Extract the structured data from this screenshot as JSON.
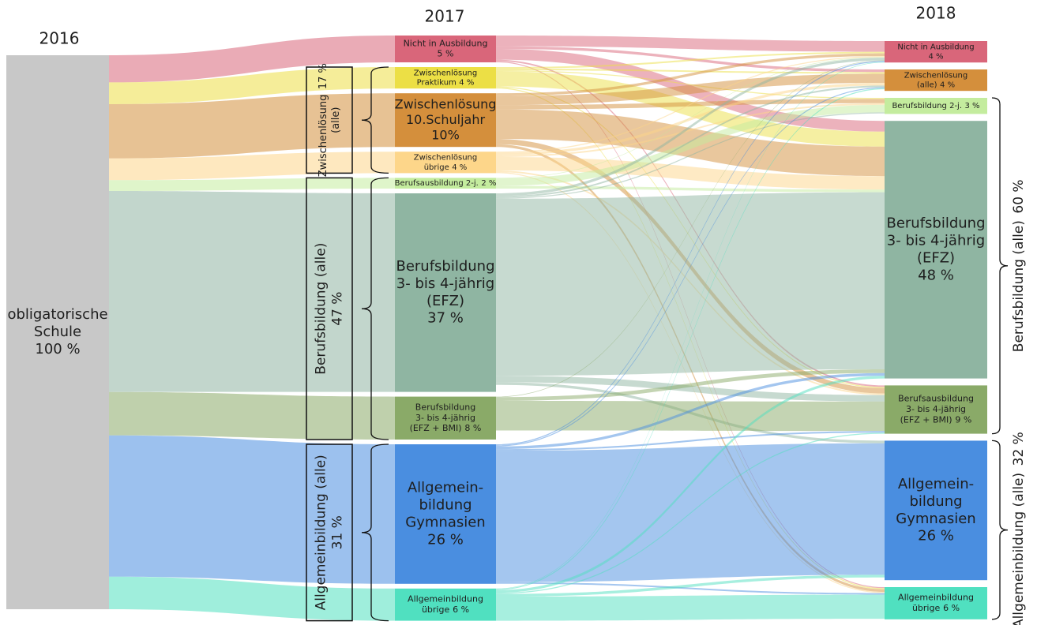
{
  "chart_data": {
    "type": "sankey",
    "columns": [
      {
        "label": "2016",
        "nodes": [
          {
            "lines": [
              "obligatorische",
              "Schule"
            ],
            "value": 100,
            "value_label": "100 %",
            "color": "#c8c8c8"
          }
        ]
      },
      {
        "label": "2017",
        "nodes": [
          {
            "lines": [
              "Nicht in Ausbildung"
            ],
            "value": 5,
            "value_label": "5 %",
            "color": "#d9667a"
          },
          {
            "lines": [
              "Zwischenlösung",
              "Praktikum"
            ],
            "value": 4,
            "value_label": "4 %",
            "color": "#ecdf45",
            "label_inline": true
          },
          {
            "lines": [
              "Zwischenlösung",
              "10.Schuljahr"
            ],
            "value": 10,
            "value_label": "10%",
            "color": "#d48f3c"
          },
          {
            "lines": [
              "Zwischenlösung",
              "übrige"
            ],
            "value": 4,
            "value_label": "4 %",
            "color": "#fdd68a",
            "label_inline": true
          },
          {
            "lines": [
              "Berufsausbildung 2-j."
            ],
            "value": 2,
            "value_label": "2 %",
            "color": "#c4ec9e",
            "label_inline": true
          },
          {
            "lines": [
              "Berufsbildung",
              "3- bis 4-jährig",
              "(EFZ)"
            ],
            "value": 37,
            "value_label": "37 %",
            "color": "#8fb5a2"
          },
          {
            "lines": [
              "Berufsbildung",
              "3- bis 4-jährig",
              "(EFZ + BMI)"
            ],
            "value": 8,
            "value_label": "8 %",
            "color": "#8aaa68",
            "label_inline": true
          },
          {
            "lines": [
              "Allgemein-",
              "bildung",
              "Gymnasien"
            ],
            "value": 26,
            "value_label": "26 %",
            "color": "#4a8ee0"
          },
          {
            "lines": [
              "Allgemeinbildung",
              "übrige"
            ],
            "value": 6,
            "value_label": "6 %",
            "color": "#50e0c0",
            "label_inline": true
          }
        ],
        "groups": [
          {
            "lines": [
              "Zwischenlösung",
              "(alle)"
            ],
            "value": 17,
            "value_label": "17 %",
            "nodes": [
              1,
              3
            ],
            "label_inline": true
          },
          {
            "lines": [
              "Berufsbildung (alle)"
            ],
            "value": 47,
            "value_label": "47 %",
            "nodes": [
              4,
              6
            ]
          },
          {
            "lines": [
              "Allgemeinbildung (alle)"
            ],
            "value": 31,
            "value_label": "31 %",
            "nodes": [
              7,
              8
            ]
          }
        ]
      },
      {
        "label": "2018",
        "nodes": [
          {
            "lines": [
              "Nicht in Ausbildung"
            ],
            "value": 4,
            "value_label": "4 %",
            "color": "#d9667a"
          },
          {
            "lines": [
              "Zwischenlösung",
              "(alle)"
            ],
            "value": 4,
            "value_label": "4 %",
            "color": "#d48f3c",
            "label_inline": true
          },
          {
            "lines": [
              "Berufsbildung 2-j."
            ],
            "value": 3,
            "value_label": "3 %",
            "color": "#c4ec9e",
            "label_inline": true
          },
          {
            "lines": [
              "Berufsbildung",
              "3- bis 4-jährig",
              "(EFZ)"
            ],
            "value": 48,
            "value_label": "48 %",
            "color": "#8fb5a2"
          },
          {
            "lines": [
              "Berufsausbildung",
              "3- bis 4-jährig",
              "(EFZ + BMI)"
            ],
            "value": 9,
            "value_label": "9 %",
            "color": "#8aaa68",
            "label_inline": true
          },
          {
            "lines": [
              "Allgemein-",
              "bildung",
              "Gymnasien"
            ],
            "value": 26,
            "value_label": "26 %",
            "color": "#4a8ee0"
          },
          {
            "lines": [
              "Allgemeinbildung",
              "übrige"
            ],
            "value": 6,
            "value_label": "6 %",
            "color": "#50e0c0",
            "label_inline": true
          }
        ],
        "groups": [
          {
            "lines": [
              "Berufsbildung (alle)"
            ],
            "value": 60,
            "value_label": "60 %",
            "nodes": [
              2,
              4
            ],
            "label_inline": true
          },
          {
            "lines": [
              "Allgemeinbildung (alle)"
            ],
            "value": 32,
            "value_label": "32 %",
            "nodes": [
              5,
              6
            ],
            "label_inline": true
          }
        ]
      }
    ],
    "links": [
      {
        "source": 0,
        "target": 0,
        "value": 2
      },
      {
        "source": 0,
        "target": 1,
        "value": 0.5
      },
      {
        "source": 0,
        "target": 3,
        "value": 2.0
      },
      {
        "source": 0,
        "target": 4,
        "value": 0.3
      },
      {
        "source": 0,
        "target": 6,
        "value": 0.2
      },
      {
        "source": 1,
        "target": 0,
        "value": 0.3
      },
      {
        "source": 1,
        "target": 1,
        "value": 0.3
      },
      {
        "source": 1,
        "target": 2,
        "value": 0.2
      },
      {
        "source": 1,
        "target": 3,
        "value": 2.8
      },
      {
        "source": 1,
        "target": 4,
        "value": 0.2
      },
      {
        "source": 1,
        "target": 6,
        "value": 0.2
      },
      {
        "source": 2,
        "target": 0,
        "value": 0.5
      },
      {
        "source": 2,
        "target": 1,
        "value": 1.7
      },
      {
        "source": 2,
        "target": 2,
        "value": 0.8
      },
      {
        "source": 2,
        "target": 3,
        "value": 5.5
      },
      {
        "source": 2,
        "target": 4,
        "value": 1
      },
      {
        "source": 2,
        "target": 6,
        "value": 0.5
      },
      {
        "source": 3,
        "target": 0,
        "value": 0.2
      },
      {
        "source": 3,
        "target": 1,
        "value": 0.5
      },
      {
        "source": 3,
        "target": 2,
        "value": 0.3
      },
      {
        "source": 3,
        "target": 3,
        "value": 2.5
      },
      {
        "source": 3,
        "target": 4,
        "value": 0.3
      },
      {
        "source": 3,
        "target": 6,
        "value": 0.2
      },
      {
        "source": 4,
        "target": 0,
        "value": 0.1
      },
      {
        "source": 4,
        "target": 2,
        "value": 1.4
      },
      {
        "source": 4,
        "target": 3,
        "value": 0.5
      },
      {
        "source": 5,
        "target": 0,
        "value": 0.5
      },
      {
        "source": 5,
        "target": 1,
        "value": 0.3
      },
      {
        "source": 5,
        "target": 2,
        "value": 0.2
      },
      {
        "source": 5,
        "target": 3,
        "value": 33
      },
      {
        "source": 5,
        "target": 4,
        "value": 1.2
      },
      {
        "source": 5,
        "target": 5,
        "value": 0.5
      },
      {
        "source": 6,
        "target": 0,
        "value": 0.1
      },
      {
        "source": 6,
        "target": 3,
        "value": 0.7
      },
      {
        "source": 6,
        "target": 4,
        "value": 5.5
      },
      {
        "source": 7,
        "target": 0,
        "value": 0.2
      },
      {
        "source": 7,
        "target": 1,
        "value": 0.2
      },
      {
        "source": 7,
        "target": 3,
        "value": 0.5
      },
      {
        "source": 7,
        "target": 4,
        "value": 0.3
      },
      {
        "source": 7,
        "target": 5,
        "value": 24.5
      },
      {
        "source": 7,
        "target": 6,
        "value": 0.3
      },
      {
        "source": 8,
        "target": 0,
        "value": 0.1
      },
      {
        "source": 8,
        "target": 1,
        "value": 0.2
      },
      {
        "source": 8,
        "target": 3,
        "value": 0.5
      },
      {
        "source": 8,
        "target": 4,
        "value": 0.2
      },
      {
        "source": 8,
        "target": 5,
        "value": 0.5
      },
      {
        "source": 8,
        "target": 6,
        "value": 4.5
      }
    ]
  }
}
